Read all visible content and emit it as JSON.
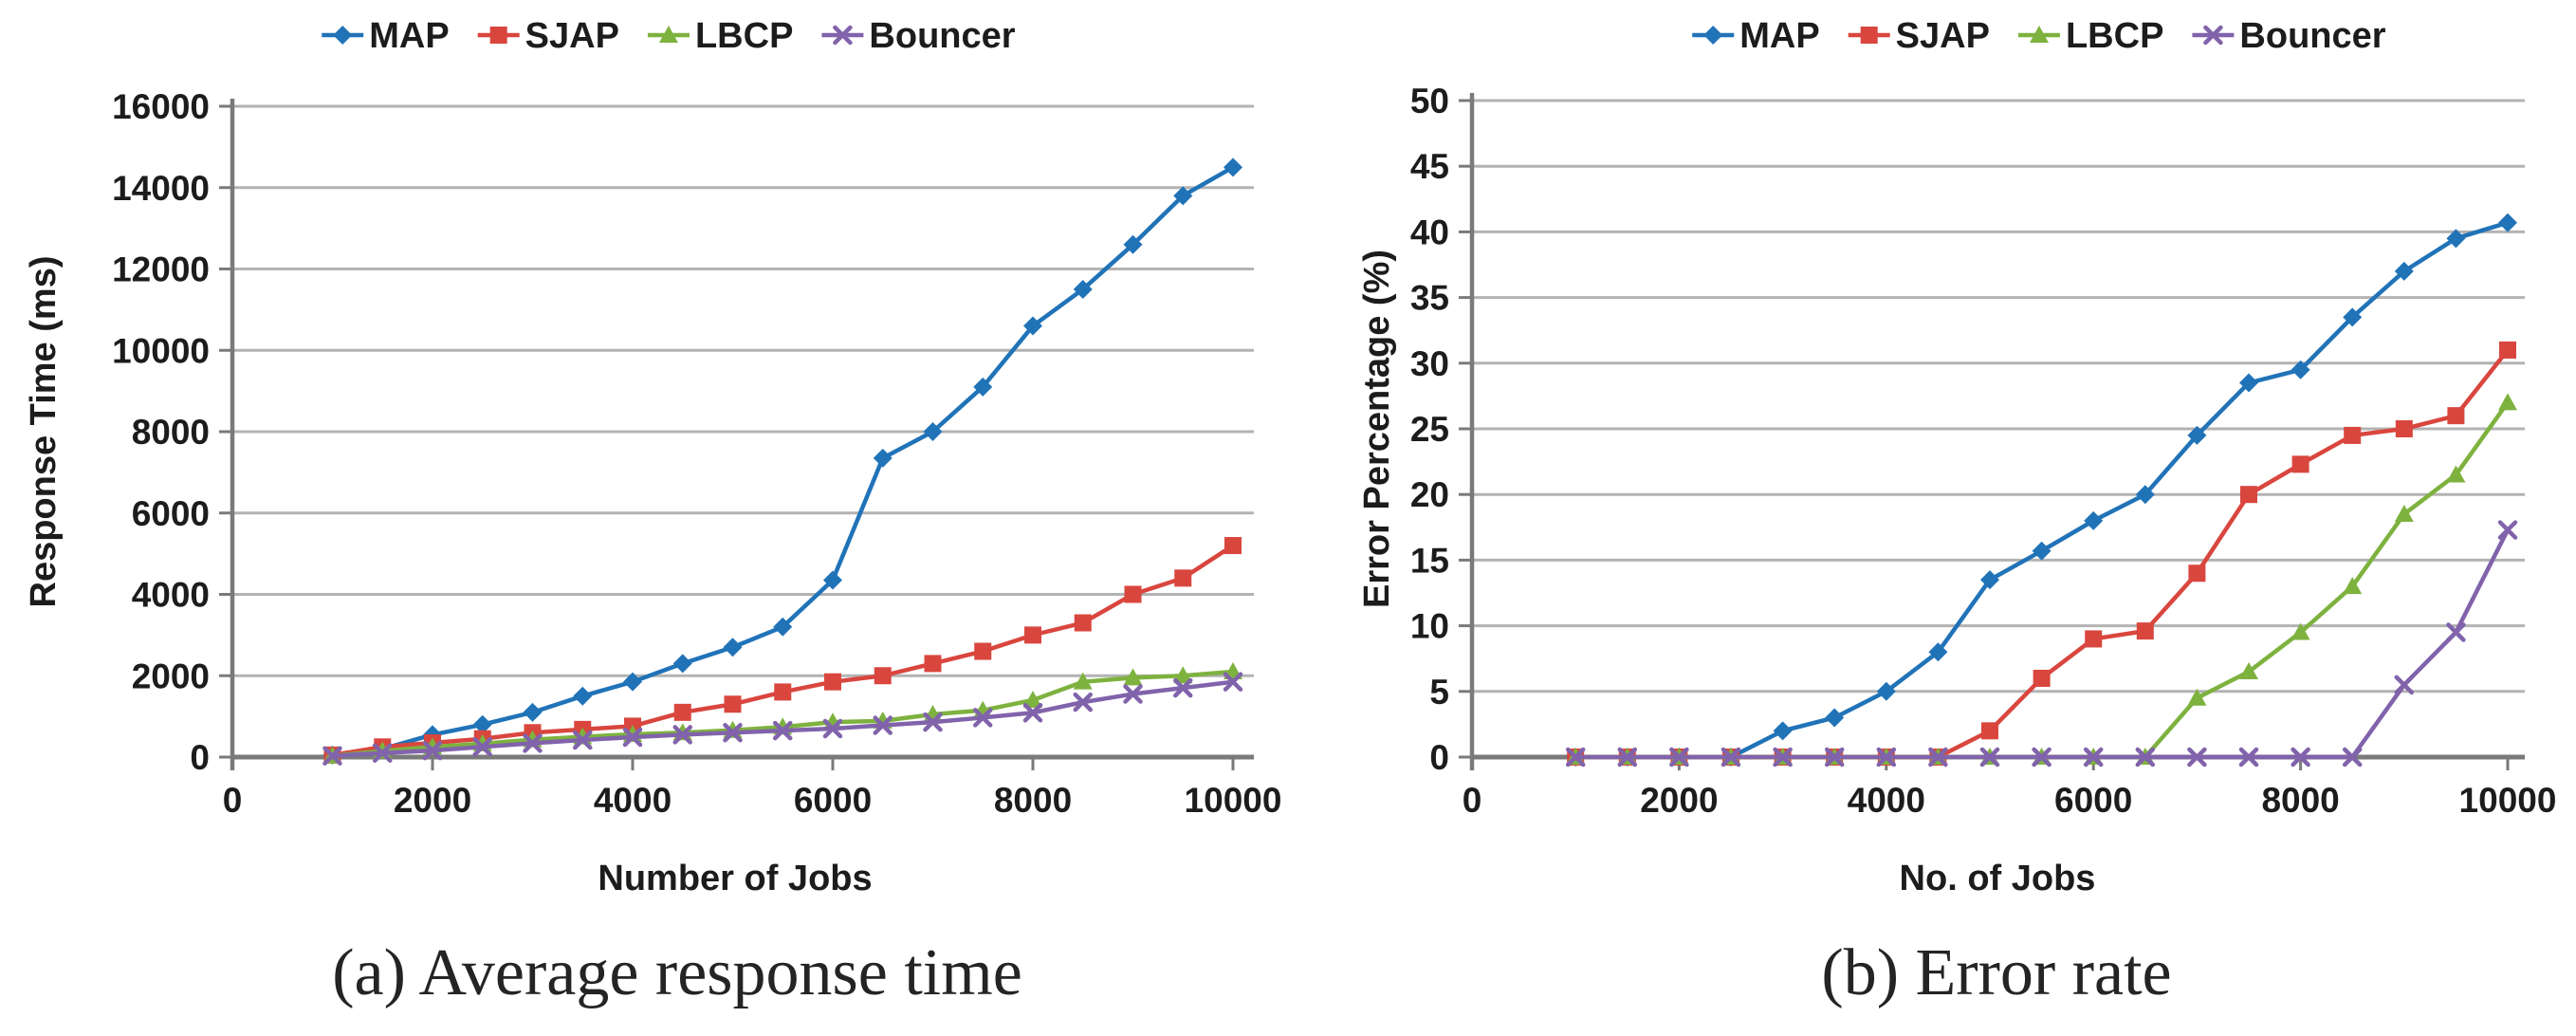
{
  "colors": {
    "map": "#2173B8",
    "sjap": "#D9463E",
    "lbcp": "#7EB23F",
    "bouncer": "#8163AB",
    "gridline": "#B3B3B3",
    "axis": "#7A7A7A",
    "text": "#1C1C1C"
  },
  "legend_items": [
    {
      "label": "MAP",
      "marker": "diamond",
      "color_key": "map"
    },
    {
      "label": "SJAP",
      "marker": "square",
      "color_key": "sjap"
    },
    {
      "label": "LBCP",
      "marker": "triangle",
      "color_key": "lbcp"
    },
    {
      "label": "Bouncer",
      "marker": "x",
      "color_key": "bouncer"
    }
  ],
  "chart_data": [
    {
      "id": "chart-a",
      "type": "line",
      "caption": "(a) Average response time",
      "xlabel": "Number of Jobs",
      "ylabel": "Response Time (ms)",
      "xlim": [
        0,
        10200
      ],
      "ylim": [
        0,
        16000
      ],
      "xticks": [
        0,
        2000,
        4000,
        6000,
        8000,
        10000
      ],
      "yticks": [
        0,
        2000,
        4000,
        6000,
        8000,
        10000,
        12000,
        14000,
        16000
      ],
      "grid": true,
      "legend_position": "top-center",
      "x": [
        1000,
        1500,
        2000,
        2500,
        3000,
        3500,
        4000,
        4500,
        5000,
        5500,
        6000,
        6500,
        7000,
        7500,
        8000,
        8500,
        9000,
        9500,
        10000
      ],
      "series": [
        {
          "name": "MAP",
          "marker": "diamond",
          "color_key": "map",
          "values": [
            50,
            200,
            550,
            800,
            1100,
            1500,
            1850,
            2300,
            2700,
            3200,
            4350,
            7350,
            8000,
            9100,
            10600,
            11500,
            12600,
            13800,
            14500
          ]
        },
        {
          "name": "SJAP",
          "marker": "square",
          "color_key": "sjap",
          "values": [
            50,
            250,
            350,
            450,
            600,
            680,
            760,
            1100,
            1300,
            1600,
            1850,
            2000,
            2300,
            2600,
            3000,
            3300,
            4000,
            4400,
            5200
          ]
        },
        {
          "name": "LBCP",
          "marker": "triangle",
          "color_key": "lbcp",
          "values": [
            30,
            150,
            250,
            330,
            430,
            500,
            560,
            600,
            660,
            740,
            860,
            890,
            1050,
            1150,
            1400,
            1850,
            1950,
            2000,
            2100
          ]
        },
        {
          "name": "Bouncer",
          "marker": "x",
          "color_key": "bouncer",
          "values": [
            30,
            100,
            160,
            250,
            340,
            420,
            490,
            550,
            600,
            650,
            700,
            780,
            860,
            970,
            1090,
            1350,
            1550,
            1700,
            1850
          ]
        }
      ]
    },
    {
      "id": "chart-b",
      "type": "line",
      "caption": "(b) Error rate",
      "xlabel": "No. of Jobs",
      "ylabel": "Error Percentage (%)",
      "xlim": [
        0,
        10200
      ],
      "ylim": [
        0,
        50
      ],
      "xticks": [
        0,
        2000,
        4000,
        6000,
        8000,
        10000
      ],
      "yticks": [
        0,
        5,
        10,
        15,
        20,
        25,
        30,
        35,
        40,
        45,
        50
      ],
      "grid": true,
      "legend_position": "top-center",
      "x": [
        1000,
        1500,
        2000,
        2500,
        3000,
        3500,
        4000,
        4500,
        5000,
        5500,
        6000,
        6500,
        7000,
        7500,
        8000,
        8500,
        9000,
        9500,
        10000
      ],
      "series": [
        {
          "name": "MAP",
          "marker": "diamond",
          "color_key": "map",
          "values": [
            0,
            0,
            0,
            0,
            2,
            3,
            5,
            8,
            13.5,
            15.7,
            18,
            20,
            24.5,
            28.5,
            29.5,
            33.5,
            37,
            39.5,
            40.7
          ]
        },
        {
          "name": "SJAP",
          "marker": "square",
          "color_key": "sjap",
          "values": [
            0,
            0,
            0,
            0,
            0,
            0,
            0,
            0,
            2,
            6,
            9,
            9.6,
            14,
            20,
            22.3,
            24.5,
            25,
            26,
            31
          ]
        },
        {
          "name": "LBCP",
          "marker": "triangle",
          "color_key": "lbcp",
          "values": [
            0,
            0,
            0,
            0,
            0,
            0,
            0,
            0,
            0,
            0,
            0,
            0,
            4.5,
            6.5,
            9.5,
            13,
            18.5,
            21.5,
            27
          ]
        },
        {
          "name": "Bouncer",
          "marker": "x",
          "color_key": "bouncer",
          "values": [
            0,
            0,
            0,
            0,
            0,
            0,
            0,
            0,
            0,
            0,
            0,
            0,
            0,
            0,
            0,
            0,
            5.5,
            9.5,
            17.3
          ]
        }
      ]
    }
  ]
}
